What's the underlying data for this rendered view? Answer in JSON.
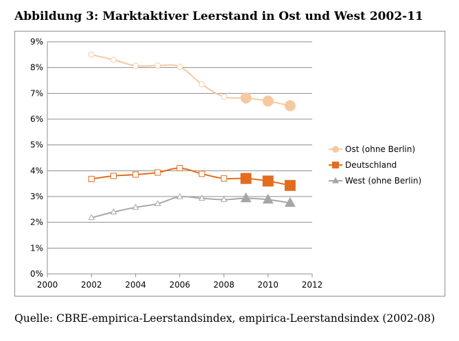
{
  "title": "Abbildung 3: Marktaktiver Leerstand in Ost und West 2002-11",
  "source": "Quelle: CBRE-empirica-Leerstandsindex, empirica-Leerstandsindex (2002-08)",
  "chart_data": {
    "type": "scatter",
    "title": "Abbildung 3: Marktaktiver Leerstand in Ost und West 2002-11",
    "xlabel": "",
    "ylabel": "",
    "xlim": [
      2000,
      2012
    ],
    "ylim": [
      0,
      9
    ],
    "x_ticks": [
      "2000",
      "2002",
      "2004",
      "2006",
      "2008",
      "2010",
      "2012"
    ],
    "y_ticks": [
      "0%",
      "1%",
      "2%",
      "3%",
      "4%",
      "5%",
      "6%",
      "7%",
      "8%",
      "9%"
    ],
    "grid": true,
    "legend": "right",
    "series": [
      {
        "name": "Ost (ohne Berlin)",
        "marker": "circle",
        "color": "#f6c9a1",
        "x": [
          2002,
          2003,
          2004,
          2005,
          2006,
          2007,
          2008,
          2009,
          2010,
          2011
        ],
        "y": [
          8.5,
          8.3,
          8.07,
          8.08,
          8.03,
          7.35,
          6.87,
          6.82,
          6.7,
          6.52
        ],
        "hollow_until_x": 2008
      },
      {
        "name": "Deutschland",
        "marker": "square",
        "color": "#e36c1e",
        "x": [
          2002,
          2003,
          2004,
          2005,
          2006,
          2007,
          2008,
          2009,
          2010,
          2011
        ],
        "y": [
          3.68,
          3.8,
          3.85,
          3.93,
          4.1,
          3.88,
          3.7,
          3.7,
          3.6,
          3.43
        ],
        "hollow_until_x": 2008
      },
      {
        "name": "West (ohne Berlin)",
        "marker": "triangle",
        "color": "#a6a6a6",
        "x": [
          2002,
          2003,
          2004,
          2005,
          2006,
          2007,
          2008,
          2009,
          2010,
          2011
        ],
        "y": [
          2.18,
          2.4,
          2.58,
          2.72,
          2.99,
          2.93,
          2.88,
          2.93,
          2.88,
          2.75
        ],
        "hollow_until_x": 2008
      }
    ]
  }
}
